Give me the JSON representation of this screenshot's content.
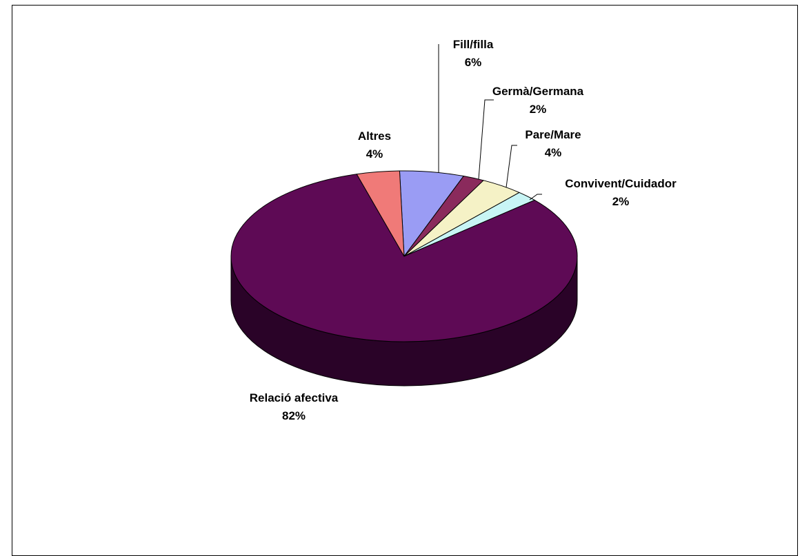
{
  "chart_data": {
    "type": "pie",
    "style": "3d-exploded-none",
    "start_angle_deg": -1.5,
    "direction": "clockwise",
    "slices": [
      {
        "label": "Fill/filla",
        "value": 6,
        "pct_label": "6%",
        "color": "#9a9cf4",
        "side": "#5a5c9a"
      },
      {
        "label": "Germà/Germana",
        "value": 2,
        "pct_label": "2%",
        "color": "#8a2a5c",
        "side": "#4e1232"
      },
      {
        "label": "Pare/Mare",
        "value": 4,
        "pct_label": "4%",
        "color": "#f5f2c6",
        "side": "#a09c74"
      },
      {
        "label": "Convivent/Cuidador",
        "value": 2,
        "pct_label": "2%",
        "color": "#c8f5f5",
        "side": "#7aa0a0"
      },
      {
        "label": "Relació afectiva",
        "value": 82,
        "pct_label": "82%",
        "color": "#5e0a55",
        "side": "#2a0328"
      },
      {
        "label": "Altres",
        "value": 4,
        "pct_label": "4%",
        "color": "#f07a78",
        "side": "#9a4644"
      }
    ]
  }
}
